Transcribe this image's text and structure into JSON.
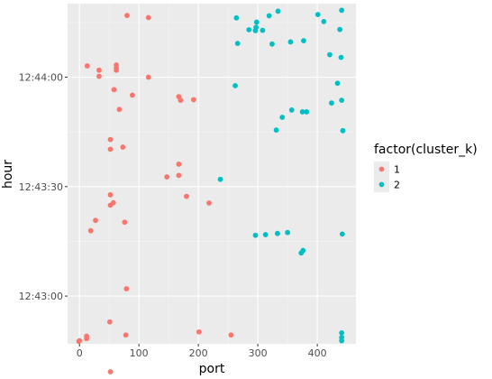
{
  "chart_data": {
    "type": "scatter",
    "xlabel": "port",
    "ylabel": "hour",
    "xlim": [
      -20,
      465
    ],
    "ylim": [
      -37,
      1082
    ],
    "x_ticks": [
      0,
      100,
      200,
      300,
      400
    ],
    "y_ticks": [
      {
        "value": 120,
        "label": "12:43:00"
      },
      {
        "value": 480,
        "label": "12:43:30"
      },
      {
        "value": 840,
        "label": "12:44:00"
      }
    ],
    "grid": true,
    "background": "#ebebeb",
    "legend": {
      "title": "factor(cluster_k)",
      "position": "right"
    },
    "series": [
      {
        "name": "1",
        "color": "#F8766D",
        "points": [
          [
            80,
            1043
          ],
          [
            116,
            1036
          ],
          [
            13,
            877
          ],
          [
            33,
            863
          ],
          [
            33,
            843
          ],
          [
            62,
            880
          ],
          [
            62,
            870
          ],
          [
            62,
            863
          ],
          [
            116,
            840
          ],
          [
            58,
            799
          ],
          [
            89,
            781
          ],
          [
            167,
            776
          ],
          [
            170,
            764
          ],
          [
            192,
            766
          ],
          [
            67,
            734
          ],
          [
            52,
            635
          ],
          [
            52,
            603
          ],
          [
            73,
            610
          ],
          [
            167,
            554
          ],
          [
            147,
            512
          ],
          [
            167,
            517
          ],
          [
            180,
            448
          ],
          [
            52,
            453
          ],
          [
            57,
            427
          ],
          [
            52,
            419
          ],
          [
            218,
            426
          ],
          [
            27,
            369
          ],
          [
            19,
            335
          ],
          [
            76,
            363
          ],
          [
            79,
            144
          ],
          [
            51,
            35
          ],
          [
            201,
            2
          ],
          [
            255,
            -8
          ],
          [
            78,
            -8
          ],
          [
            12,
            -12
          ],
          [
            12,
            -20
          ],
          [
            0,
            -27
          ],
          [
            -1,
            -29
          ],
          [
            52,
            -129
          ]
        ]
      },
      {
        "name": "2",
        "color": "#00BFC4",
        "points": [
          [
            334,
            1057
          ],
          [
            441,
            1060
          ],
          [
            401,
            1046
          ],
          [
            319,
            1042
          ],
          [
            264,
            1035
          ],
          [
            411,
            1023
          ],
          [
            298,
            1021
          ],
          [
            297,
            1004
          ],
          [
            285,
            996
          ],
          [
            296,
            993
          ],
          [
            308,
            994
          ],
          [
            438,
            997
          ],
          [
            266,
            951
          ],
          [
            324,
            949
          ],
          [
            355,
            956
          ],
          [
            377,
            960
          ],
          [
            421,
            914
          ],
          [
            440,
            905
          ],
          [
            434,
            820
          ],
          [
            262,
            812
          ],
          [
            441,
            764
          ],
          [
            424,
            755
          ],
          [
            357,
            732
          ],
          [
            375,
            726
          ],
          [
            382,
            726
          ],
          [
            341,
            708
          ],
          [
            331,
            666
          ],
          [
            443,
            664
          ],
          [
            237,
            504
          ],
          [
            350,
            329
          ],
          [
            333,
            326
          ],
          [
            313,
            322
          ],
          [
            296,
            320
          ],
          [
            442,
            324
          ],
          [
            376,
            270
          ],
          [
            373,
            262
          ],
          [
            441,
            -1
          ],
          [
            441,
            -16
          ],
          [
            441,
            -27
          ]
        ]
      }
    ]
  }
}
